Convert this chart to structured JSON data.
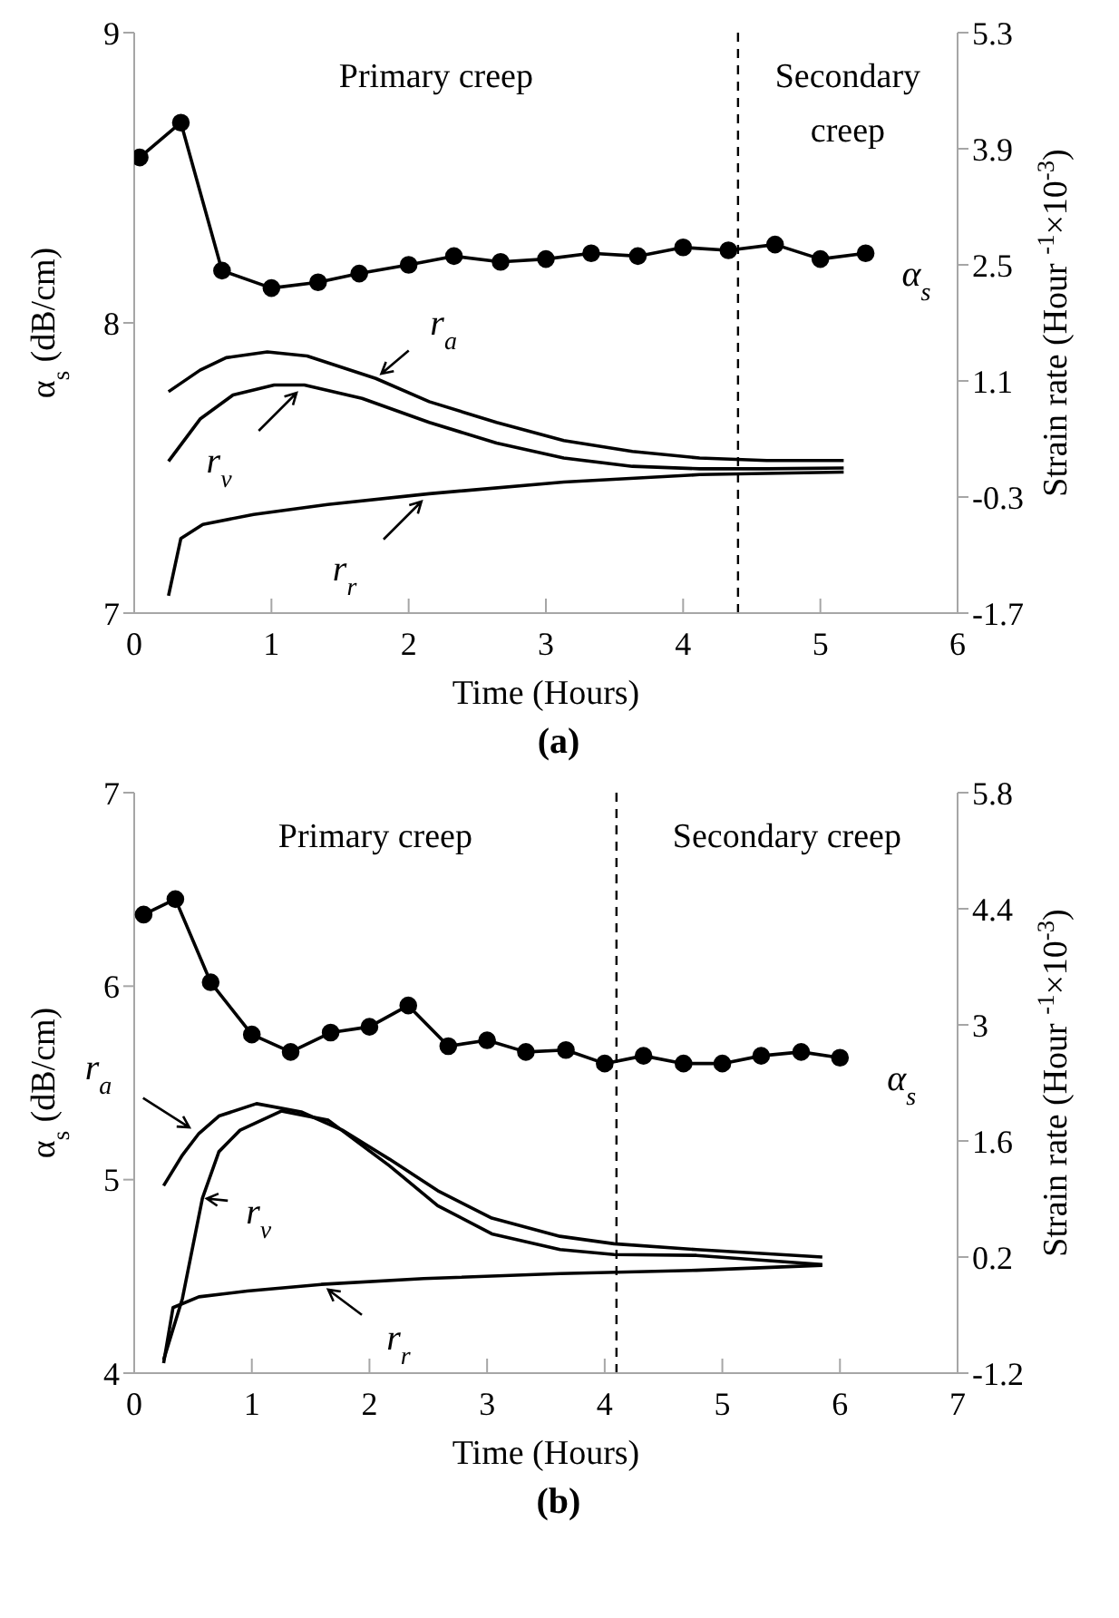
{
  "chart_data": [
    {
      "type": "line",
      "title": "(a)",
      "xlabel": "Time (Hours)",
      "ylabel": "α$_{s}$ (dB/cm)",
      "y2label": "Strain rate (Hour $^{-1}$×10$^{-3}$)",
      "xlim": [
        0,
        6
      ],
      "xticks": [
        0,
        1,
        2,
        3,
        4,
        5,
        6
      ],
      "ylim": [
        7,
        9
      ],
      "yticks": [
        7,
        8,
        9
      ],
      "y2lim": [
        -1.7,
        5.3
      ],
      "y2ticks": [
        -1.7,
        -0.3,
        1.1,
        2.5,
        3.9,
        5.3
      ],
      "annotations": [
        "Primary creep",
        "Secondary creep"
      ],
      "ref_lines": [
        {
          "axis": "x",
          "value": 4.4,
          "color": "#000000",
          "line_style": "dashed"
        }
      ],
      "series": [
        {
          "name": "α$_{s}$",
          "color": "#000000",
          "marker": "circle",
          "x": [
            0.04,
            0.34,
            0.64,
            1.0,
            1.34,
            1.64,
            2.0,
            2.33,
            2.67,
            3.0,
            3.33,
            3.67,
            4.0,
            4.33,
            4.67,
            5.0,
            5.33
          ],
          "values": [
            8.57,
            8.69,
            8.18,
            8.12,
            8.14,
            8.17,
            8.2,
            8.23,
            8.21,
            8.22,
            8.24,
            8.23,
            8.26,
            8.25,
            8.27,
            8.22,
            8.24
          ]
        },
        {
          "name": "r$_{a}$",
          "color": "#000000",
          "marker": "none",
          "axis": "y2",
          "x": [
            0.25,
            0.48,
            0.67,
            0.97,
            1.26,
            1.76,
            2.15,
            2.64,
            3.13,
            3.63,
            4.12,
            4.61,
            5.17
          ],
          "values": [
            0.97,
            1.23,
            1.38,
            1.45,
            1.4,
            1.13,
            0.85,
            0.6,
            0.38,
            0.25,
            0.17,
            0.14,
            0.14
          ]
        },
        {
          "name": "r$_{v}$",
          "color": "#000000",
          "marker": "none",
          "axis": "y2",
          "x": [
            0.25,
            0.48,
            0.72,
            1.02,
            1.24,
            1.66,
            2.15,
            2.64,
            3.13,
            3.63,
            4.12,
            4.61,
            5.17
          ],
          "values": [
            0.13,
            0.64,
            0.93,
            1.05,
            1.05,
            0.89,
            0.6,
            0.35,
            0.17,
            0.07,
            0.04,
            0.04,
            0.05
          ]
        },
        {
          "name": "r$_{r}$",
          "color": "#000000",
          "marker": "none",
          "axis": "y2",
          "x": [
            0.25,
            0.34,
            0.5,
            0.87,
            1.41,
            2.15,
            3.13,
            4.12,
            5.17
          ],
          "values": [
            -1.49,
            -0.8,
            -0.63,
            -0.51,
            -0.39,
            -0.26,
            -0.12,
            -0.03,
            0.0
          ]
        }
      ]
    },
    {
      "type": "line",
      "title": "(b)",
      "xlabel": "Time (Hours)",
      "ylabel": "α$_{s}$ (dB/cm)",
      "y2label": "Strain rate (Hour $^{-1}$×10$^{-3}$)",
      "xlim": [
        0,
        7
      ],
      "xticks": [
        0,
        1,
        2,
        3,
        4,
        5,
        6,
        7
      ],
      "ylim": [
        4,
        7
      ],
      "yticks": [
        4,
        5,
        6,
        7
      ],
      "y2lim": [
        -1.2,
        5.8
      ],
      "y2ticks": [
        -1.2,
        0.2,
        1.6,
        3,
        4.4,
        5.8
      ],
      "annotations": [
        "Primary creep",
        "Secondary creep"
      ],
      "ref_lines": [
        {
          "axis": "x",
          "value": 4.1,
          "color": "#000000",
          "line_style": "dashed"
        }
      ],
      "series": [
        {
          "name": "α$_{s}$",
          "color": "#000000",
          "marker": "circle",
          "x": [
            0.08,
            0.35,
            0.65,
            1.0,
            1.33,
            1.67,
            2.0,
            2.33,
            2.67,
            3.0,
            3.33,
            3.67,
            4.0,
            4.33,
            4.67,
            5.0,
            5.33,
            5.67,
            6.0
          ],
          "values": [
            6.37,
            6.45,
            6.02,
            5.75,
            5.66,
            5.76,
            5.79,
            5.9,
            5.69,
            5.72,
            5.66,
            5.67,
            5.6,
            5.64,
            5.6,
            5.6,
            5.64,
            5.66,
            5.63
          ]
        },
        {
          "name": "r$_{a}$",
          "color": "#000000",
          "marker": "none",
          "axis": "y2",
          "x": [
            0.25,
            0.41,
            0.55,
            0.72,
            1.04,
            1.42,
            1.77,
            2.17,
            2.58,
            3.04,
            3.62,
            4.08,
            4.78,
            5.85
          ],
          "values": [
            1.06,
            1.43,
            1.69,
            1.9,
            2.05,
            1.95,
            1.73,
            1.38,
            1.0,
            0.67,
            0.45,
            0.36,
            0.29,
            0.2
          ]
        },
        {
          "name": "r$_{v}$",
          "color": "#000000",
          "marker": "none",
          "axis": "y2",
          "x": [
            0.25,
            0.41,
            0.58,
            0.72,
            0.9,
            1.25,
            1.65,
            2.17,
            2.58,
            3.04,
            3.62,
            4.08,
            4.78,
            5.85
          ],
          "values": [
            -1.04,
            -0.3,
            0.91,
            1.47,
            1.73,
            1.96,
            1.85,
            1.3,
            0.82,
            0.48,
            0.29,
            0.23,
            0.22,
            0.11
          ]
        },
        {
          "name": "r$_{r}$",
          "color": "#000000",
          "marker": "none",
          "axis": "y2",
          "x": [
            0.25,
            0.33,
            0.55,
            0.96,
            1.59,
            2.46,
            3.62,
            4.78,
            5.85
          ],
          "values": [
            -1.08,
            -0.41,
            -0.28,
            -0.21,
            -0.13,
            -0.06,
            0.0,
            0.04,
            0.1
          ]
        }
      ]
    }
  ]
}
